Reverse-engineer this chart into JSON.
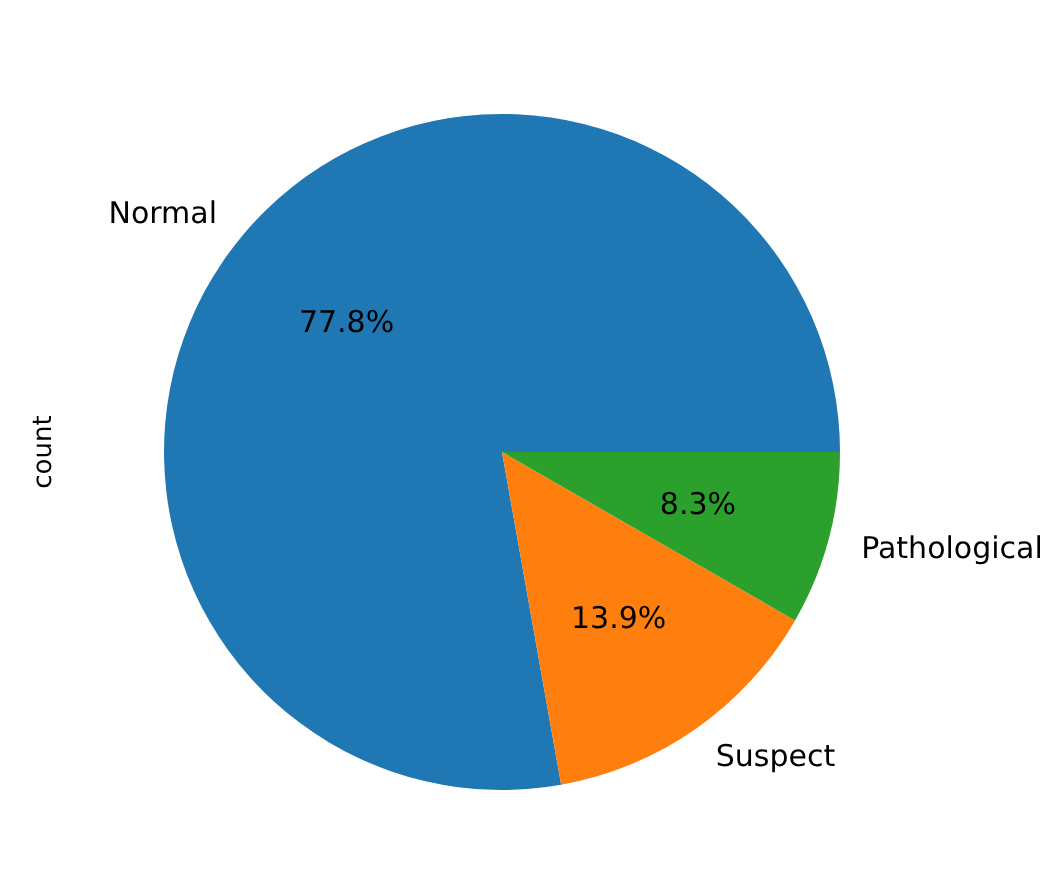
{
  "chart_data": {
    "type": "pie",
    "ylabel": "count",
    "categories": [
      "Normal",
      "Suspect",
      "Pathological"
    ],
    "values": [
      77.8,
      13.9,
      8.3
    ],
    "colors": [
      "#1f77b4",
      "#ff7f0e",
      "#2ca02c"
    ],
    "value_labels": [
      "77.8%",
      "13.9%",
      "8.3%"
    ],
    "legend": false
  }
}
